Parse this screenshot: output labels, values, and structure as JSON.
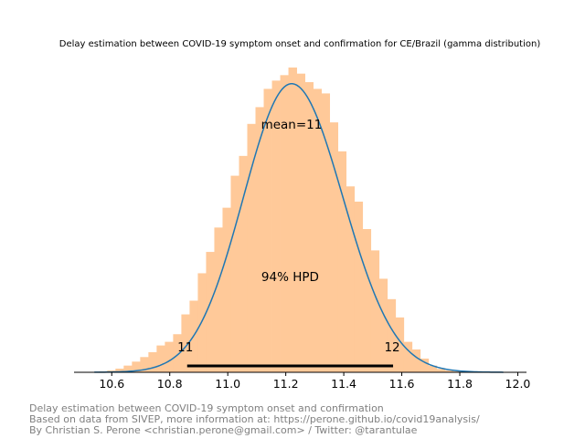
{
  "chart_data": {
    "type": "area",
    "title": "Delay estimation between COVID-19 symptom onset and confirmation for CE/Brazil (gamma distribution)",
    "xlabel": "",
    "ylabel": "",
    "xlim": [
      10.47,
      12.03
    ],
    "xticks": [
      "10.6",
      "10.8",
      "11.0",
      "11.2",
      "11.4",
      "11.6",
      "11.8",
      "12.0"
    ],
    "xtick_values": [
      10.6,
      10.8,
      11.0,
      11.2,
      11.4,
      11.6,
      11.8,
      12.0
    ],
    "y_axis_visible": false,
    "grid": false,
    "histogram": {
      "color": "#ffc999",
      "bin_start": 10.556,
      "bin_width": 0.0284,
      "relative_heights": [
        0.003,
        0.006,
        0.012,
        0.022,
        0.035,
        0.05,
        0.066,
        0.088,
        0.1,
        0.125,
        0.19,
        0.235,
        0.325,
        0.395,
        0.475,
        0.54,
        0.645,
        0.71,
        0.815,
        0.87,
        0.93,
        0.957,
        0.975,
        1.0,
        0.98,
        0.952,
        0.93,
        0.915,
        0.82,
        0.725,
        0.61,
        0.56,
        0.47,
        0.4,
        0.307,
        0.24,
        0.18,
        0.1,
        0.075,
        0.045,
        0.022,
        0.011,
        0.006,
        0.003,
        0.001
      ]
    },
    "density_curve": {
      "color": "#1f77b4",
      "x_range": [
        10.54,
        11.95
      ],
      "mode": 11.22,
      "relative_peak": 0.947
    },
    "annotations": {
      "mean_label": "mean=11",
      "mean_x": 11.22,
      "hpd_label": "94% HPD",
      "hpd_low": 10.86,
      "hpd_high": 11.57,
      "hpd_low_label": "11",
      "hpd_high_label": "12"
    }
  },
  "footer": {
    "line1": "Delay estimation between COVID-19 symptom onset and confirmation",
    "line2": "Based on data from SIVEP, more information at: https://perone.github.io/covid19analysis/",
    "line3": "By Christian S. Perone <christian.perone@gmail.com> / Twitter: @tarantulae"
  }
}
